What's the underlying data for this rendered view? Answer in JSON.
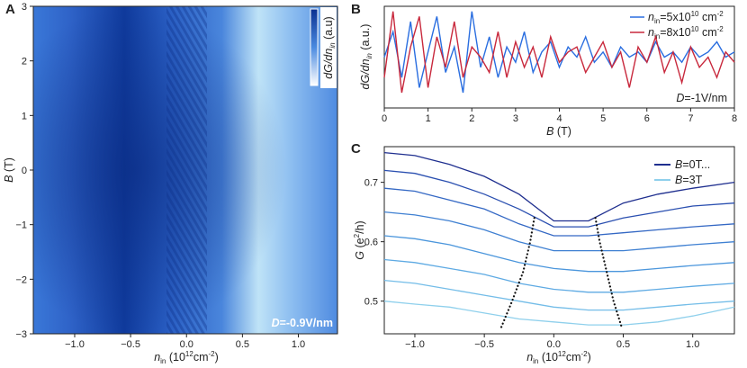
{
  "chart_data": [
    {
      "type": "heatmap",
      "panel": "A",
      "xlabel": [
        "n",
        "in",
        " (10",
        "12",
        "cm",
        "-2",
        ")"
      ],
      "ylabel": [
        "B",
        " (T)"
      ],
      "colorbar_label": [
        "dG/dn",
        "in",
        " (a.u)"
      ],
      "annotation": [
        "D",
        "=-0.9V/nm"
      ],
      "xlim": [
        -1.37,
        1.35
      ],
      "ylim": [
        -3,
        3
      ],
      "xticks": [
        {
          "value": -1,
          "label": "−1.0"
        },
        {
          "value": -0.5,
          "label": "−0.5"
        },
        {
          "value": 0,
          "label": "0.0"
        },
        {
          "value": 0.5,
          "label": "0.5"
        },
        {
          "value": 1,
          "label": "1.0"
        }
      ],
      "yticks": [
        {
          "value": -3,
          "label": "−3"
        },
        {
          "value": -2,
          "label": "−2"
        },
        {
          "value": -1,
          "label": "−1"
        },
        0,
        1,
        2,
        3
      ]
    },
    {
      "type": "line",
      "panel": "B",
      "xlabel": [
        "B",
        " (T)"
      ],
      "ylabel": [
        "dG/dn",
        "in",
        " (a.u.)"
      ],
      "annotation": [
        "D",
        "=-1V/nm"
      ],
      "xlim": [
        0,
        8
      ],
      "ylim": [
        0,
        1
      ],
      "xticks": [
        0,
        1,
        2,
        3,
        4,
        5,
        6,
        7,
        8
      ],
      "x": [
        0,
        0.2,
        0.4,
        0.6,
        0.8,
        1,
        1.2,
        1.4,
        1.6,
        1.8,
        2,
        2.2,
        2.4,
        2.6,
        2.8,
        3,
        3.2,
        3.4,
        3.6,
        3.8,
        4,
        4.2,
        4.4,
        4.6,
        4.8,
        5,
        5.2,
        5.4,
        5.6,
        5.8,
        6,
        6.2,
        6.4,
        6.6,
        6.8,
        7,
        7.2,
        7.4,
        7.6,
        7.8,
        8
      ],
      "series": [
        {
          "name": [
            "n",
            "in",
            "=5x10",
            "10",
            " cm",
            "-2"
          ],
          "color": "#2a6ee0",
          "values": [
            0.5,
            0.75,
            0.3,
            0.85,
            0.2,
            0.55,
            0.9,
            0.35,
            0.6,
            0.15,
            0.95,
            0.4,
            0.7,
            0.3,
            0.6,
            0.45,
            0.75,
            0.35,
            0.55,
            0.65,
            0.4,
            0.6,
            0.5,
            0.7,
            0.45,
            0.55,
            0.4,
            0.6,
            0.5,
            0.55,
            0.45,
            0.65,
            0.5,
            0.55,
            0.45,
            0.6,
            0.5,
            0.55,
            0.65,
            0.5,
            0.55
          ]
        },
        {
          "name": [
            "n",
            "in",
            "=8x10",
            "10",
            " cm",
            "-2"
          ],
          "color": "#c8283c",
          "values": [
            0.3,
            0.95,
            0.15,
            0.6,
            0.9,
            0.2,
            0.7,
            0.4,
            0.85,
            0.3,
            0.6,
            0.5,
            0.35,
            0.75,
            0.3,
            0.65,
            0.4,
            0.6,
            0.3,
            0.7,
            0.45,
            0.55,
            0.6,
            0.35,
            0.5,
            0.65,
            0.4,
            0.55,
            0.2,
            0.6,
            0.45,
            0.7,
            0.35,
            0.55,
            0.25,
            0.6,
            0.4,
            0.5,
            0.3,
            0.55,
            0.45
          ]
        }
      ]
    },
    {
      "type": "line",
      "panel": "C",
      "xlabel": [
        "n",
        "in",
        " (10",
        "12",
        "cm",
        "-2",
        ")"
      ],
      "ylabel": [
        "G",
        " (e",
        "2",
        "/h)"
      ],
      "xlim": [
        -1.22,
        1.3
      ],
      "ylim": [
        0.445,
        0.76
      ],
      "xticks": [
        {
          "value": -1,
          "label": "−1.0"
        },
        {
          "value": -0.5,
          "label": "−0.5"
        },
        {
          "value": 0,
          "label": "0.0"
        },
        {
          "value": 0.5,
          "label": "0.5"
        },
        {
          "value": 1,
          "label": "1.0"
        }
      ],
      "yticks": [
        0.5,
        0.6,
        0.7
      ],
      "x": [
        -1.22,
        -1.0,
        -0.75,
        -0.5,
        -0.25,
        0,
        0.25,
        0.5,
        0.75,
        1.0,
        1.3
      ],
      "series": [
        {
          "name": [
            "B",
            "=0T..."
          ],
          "color": "#1f2f8f",
          "values": [
            0.75,
            0.745,
            0.73,
            0.71,
            0.68,
            0.635,
            0.635,
            0.665,
            0.68,
            0.69,
            0.7
          ]
        },
        {
          "color": "#2a4fb0",
          "values": [
            0.72,
            0.715,
            0.7,
            0.68,
            0.655,
            0.625,
            0.625,
            0.64,
            0.65,
            0.66,
            0.665
          ]
        },
        {
          "color": "#3468c4",
          "values": [
            0.69,
            0.685,
            0.67,
            0.655,
            0.63,
            0.61,
            0.61,
            0.615,
            0.62,
            0.625,
            0.63
          ]
        },
        {
          "color": "#3f80d2",
          "values": [
            0.65,
            0.645,
            0.635,
            0.62,
            0.6,
            0.585,
            0.585,
            0.585,
            0.59,
            0.595,
            0.6
          ]
        },
        {
          "color": "#4b96dc",
          "values": [
            0.61,
            0.605,
            0.595,
            0.58,
            0.565,
            0.555,
            0.55,
            0.55,
            0.555,
            0.56,
            0.565
          ]
        },
        {
          "color": "#5eaae3",
          "values": [
            0.57,
            0.565,
            0.555,
            0.545,
            0.53,
            0.52,
            0.515,
            0.515,
            0.52,
            0.525,
            0.53
          ]
        },
        {
          "color": "#74bde8",
          "values": [
            0.535,
            0.53,
            0.52,
            0.51,
            0.5,
            0.49,
            0.485,
            0.485,
            0.49,
            0.495,
            0.5
          ]
        },
        {
          "name": [
            "B",
            "=3T"
          ],
          "color": "#8fd0ec",
          "values": [
            0.5,
            0.495,
            0.49,
            0.48,
            0.47,
            0.465,
            0.46,
            0.46,
            0.465,
            0.475,
            0.49
          ]
        }
      ],
      "guides": [
        {
          "x": [
            -0.14,
            -0.17,
            -0.22,
            -0.3,
            -0.38
          ],
          "y": [
            0.64,
            0.6,
            0.55,
            0.5,
            0.455
          ]
        },
        {
          "x": [
            0.3,
            0.33,
            0.38,
            0.43,
            0.49
          ],
          "y": [
            0.64,
            0.6,
            0.55,
            0.5,
            0.455
          ]
        }
      ]
    }
  ]
}
